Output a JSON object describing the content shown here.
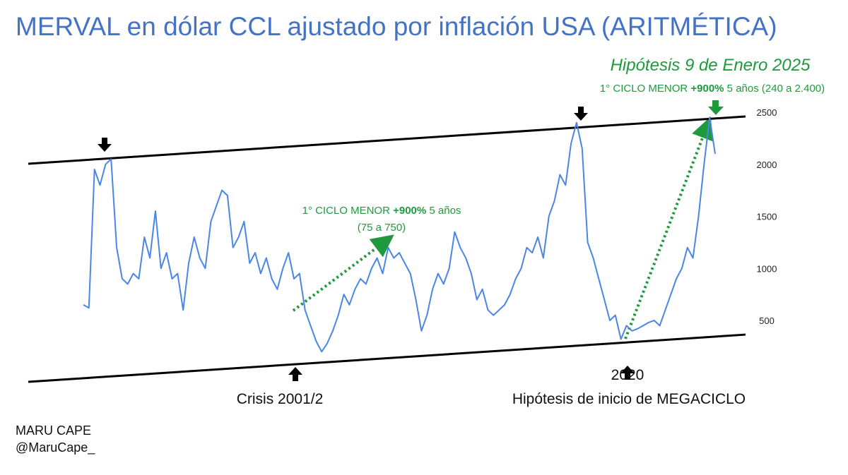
{
  "chart_data": {
    "type": "line",
    "title": "MERVAL en dólar CCL ajustado por inflación USA (ARITMÉTICA)",
    "values": [
      650,
      620,
      1950,
      1800,
      2000,
      2050,
      1200,
      900,
      850,
      950,
      900,
      1300,
      1100,
      1550,
      1000,
      1150,
      900,
      950,
      600,
      1050,
      1300,
      1100,
      1000,
      1450,
      1600,
      1750,
      1700,
      1200,
      1300,
      1450,
      1050,
      1150,
      950,
      1100,
      900,
      800,
      1000,
      1150,
      900,
      950,
      600,
      450,
      300,
      200,
      280,
      400,
      550,
      750,
      650,
      800,
      900,
      850,
      1000,
      1100,
      950,
      1200,
      1100,
      1150,
      1050,
      950,
      700,
      400,
      550,
      800,
      950,
      850,
      1000,
      1350,
      1200,
      1100,
      950,
      700,
      800,
      600,
      550,
      600,
      650,
      750,
      900,
      1000,
      1200,
      1150,
      1300,
      1100,
      1500,
      1650,
      1900,
      1800,
      2200,
      2400,
      2150,
      1250,
      1100,
      900,
      700,
      500,
      550,
      320,
      450,
      400,
      420,
      450,
      480,
      500,
      450,
      600,
      750,
      900,
      1000,
      1200,
      1100,
      1500,
      2000,
      2450,
      2100
    ],
    "color": "#4a86e8",
    "ylim": [
      -100,
      2700
    ],
    "yticks": [
      500,
      1000,
      1500,
      2000,
      2500
    ],
    "channel": {
      "upper": [
        2005,
        2459
      ],
      "lower": [
        -90,
        364
      ]
    },
    "annotations": {
      "top_heading": "Hipótesis 9 de Enero 2025",
      "top_note": [
        "1° CICLO MENOR ",
        "+900%",
        " 5 años (240 a 2.400)"
      ],
      "mid_note": [
        "1° CICLO MENOR ",
        "+900%",
        " 5 años"
      ],
      "mid_note2": "(75 a 750)",
      "crisis": "Crisis 2001/2",
      "year": "2020",
      "mega": "Hipótesis de inicio de MEGACICLO"
    },
    "author": [
      "MARU CAPE",
      "@MaruCape_"
    ]
  }
}
